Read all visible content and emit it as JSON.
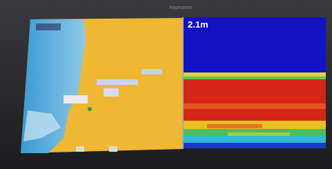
{
  "device": {
    "brand": "Raymarine"
  },
  "sonar": {
    "depth": "2.1m"
  }
}
